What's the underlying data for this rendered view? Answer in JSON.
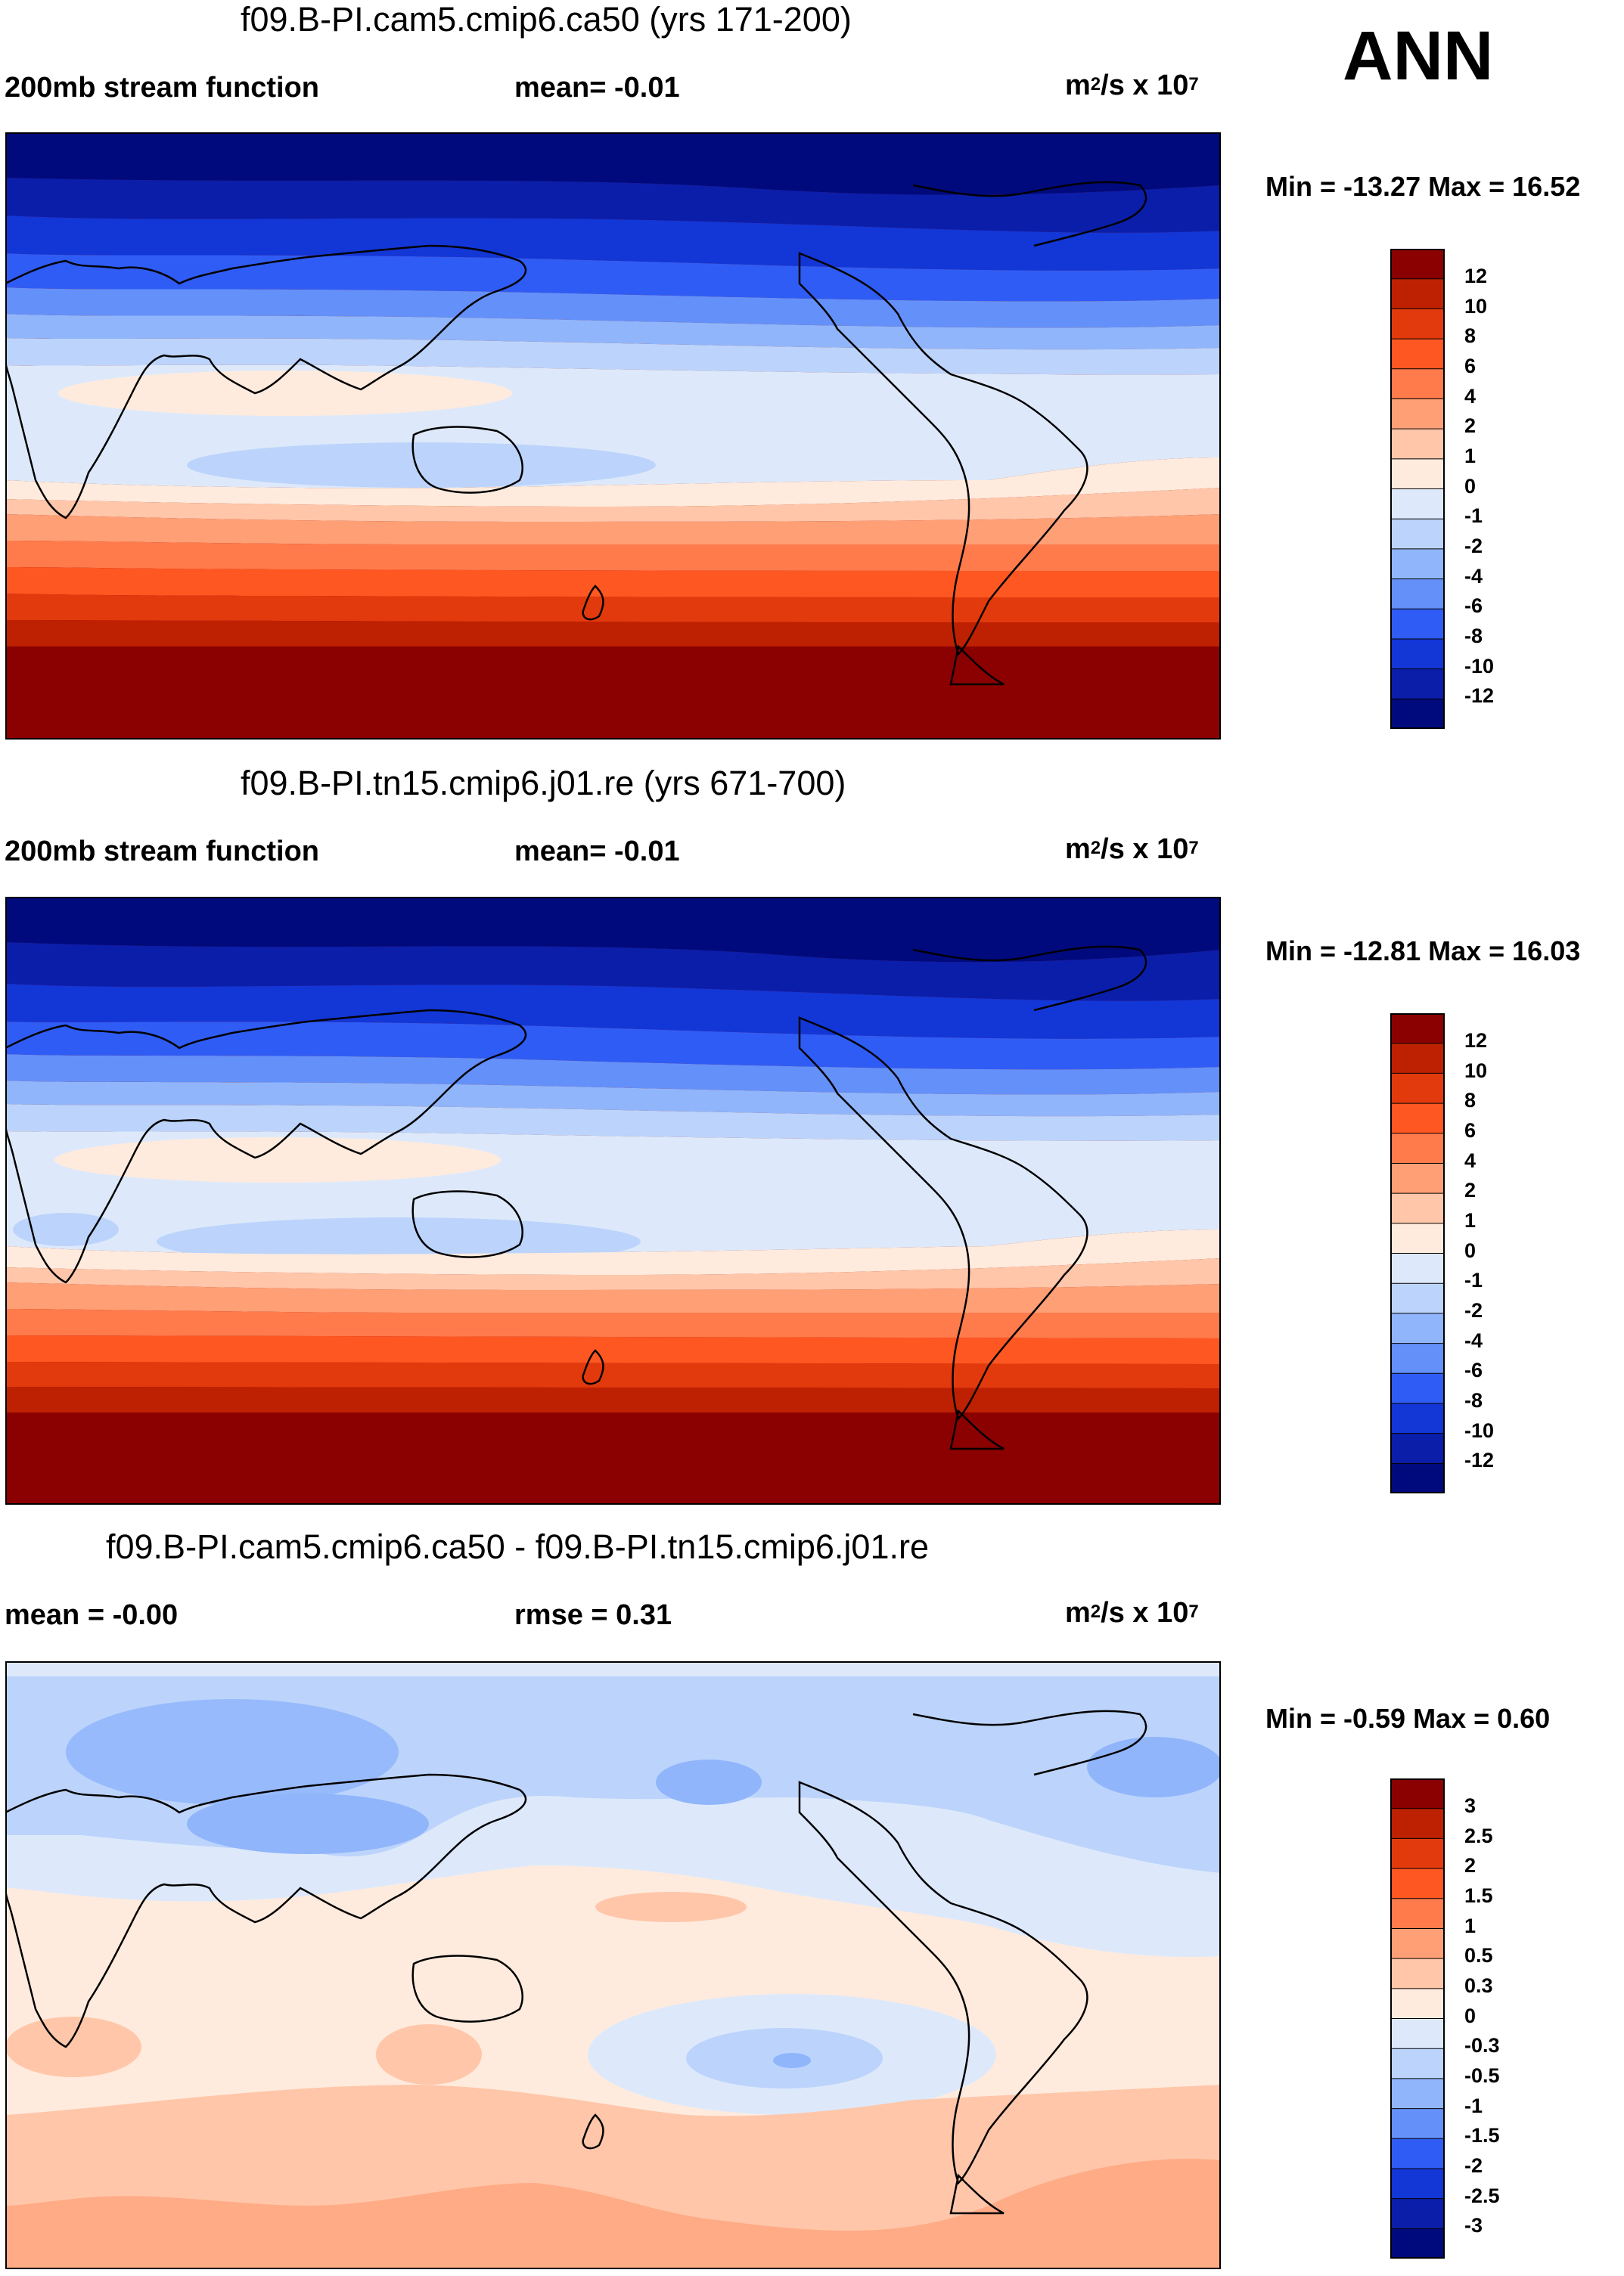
{
  "season": "ANN",
  "panels": [
    {
      "title": "f09.B-PI.cam5.cmip6.ca50 (yrs 171-200)",
      "left_label": "200mb stream function",
      "mid_label": "mean=  -0.01",
      "units_base": "m",
      "units_exp1": "2",
      "units_mid": "/s x 10",
      "units_exp2": "7",
      "minmax": "Min = -13.27 Max =  16.52",
      "colorbar": {
        "labels": [
          "12",
          "10",
          "8",
          "6",
          "4",
          "2",
          "1",
          "0",
          "-1",
          "-2",
          "-4",
          "-6",
          "-8",
          "-10",
          "-12"
        ],
        "colors": [
          "#8b0000",
          "#be2102",
          "#e23a0d",
          "#fe5722",
          "#ff7b4c",
          "#ff9f76",
          "#ffc6a9",
          "#ffebdd",
          "#dde9fb",
          "#bcd4fb",
          "#90b5fb",
          "#6490fa",
          "#2f5cf5",
          "#1336d6",
          "#0a1eaa",
          "#000a7d"
        ]
      }
    },
    {
      "title": "f09.B-PI.tn15.cmip6.j01.re (yrs 671-700)",
      "left_label": "200mb stream function",
      "mid_label": "mean=  -0.01",
      "units_base": "m",
      "units_exp1": "2",
      "units_mid": "/s x 10",
      "units_exp2": "7",
      "minmax": "Min = -12.81 Max =  16.03",
      "colorbar": {
        "labels": [
          "12",
          "10",
          "8",
          "6",
          "4",
          "2",
          "1",
          "0",
          "-1",
          "-2",
          "-4",
          "-6",
          "-8",
          "-10",
          "-12"
        ],
        "colors": [
          "#8b0000",
          "#be2102",
          "#e23a0d",
          "#fe5722",
          "#ff7b4c",
          "#ff9f76",
          "#ffc6a9",
          "#ffebdd",
          "#dde9fb",
          "#bcd4fb",
          "#90b5fb",
          "#6490fa",
          "#2f5cf5",
          "#1336d6",
          "#0a1eaa",
          "#000a7d"
        ]
      }
    },
    {
      "title": "f09.B-PI.cam5.cmip6.ca50 - f09.B-PI.tn15.cmip6.j01.re",
      "left_label": "mean =  -0.00",
      "mid_label": "rmse =   0.31",
      "units_base": "m",
      "units_exp1": "2",
      "units_mid": "/s x 10",
      "units_exp2": "7",
      "minmax": "Min =  -0.59 Max =   0.60",
      "colorbar": {
        "labels": [
          "3",
          "2.5",
          "2",
          "1.5",
          "1",
          "0.5",
          "0.3",
          "0",
          "-0.3",
          "-0.5",
          "-1",
          "-1.5",
          "-2",
          "-2.5",
          "-3"
        ],
        "colors": [
          "#8b0000",
          "#be2102",
          "#e23a0d",
          "#fe5722",
          "#ff7b4c",
          "#ff9f76",
          "#ffc6a9",
          "#ffebdd",
          "#dde9fb",
          "#bcd4fb",
          "#90b5fb",
          "#6490fa",
          "#2f5cf5",
          "#1336d6",
          "#0a1eaa",
          "#000a7d"
        ]
      }
    }
  ]
}
